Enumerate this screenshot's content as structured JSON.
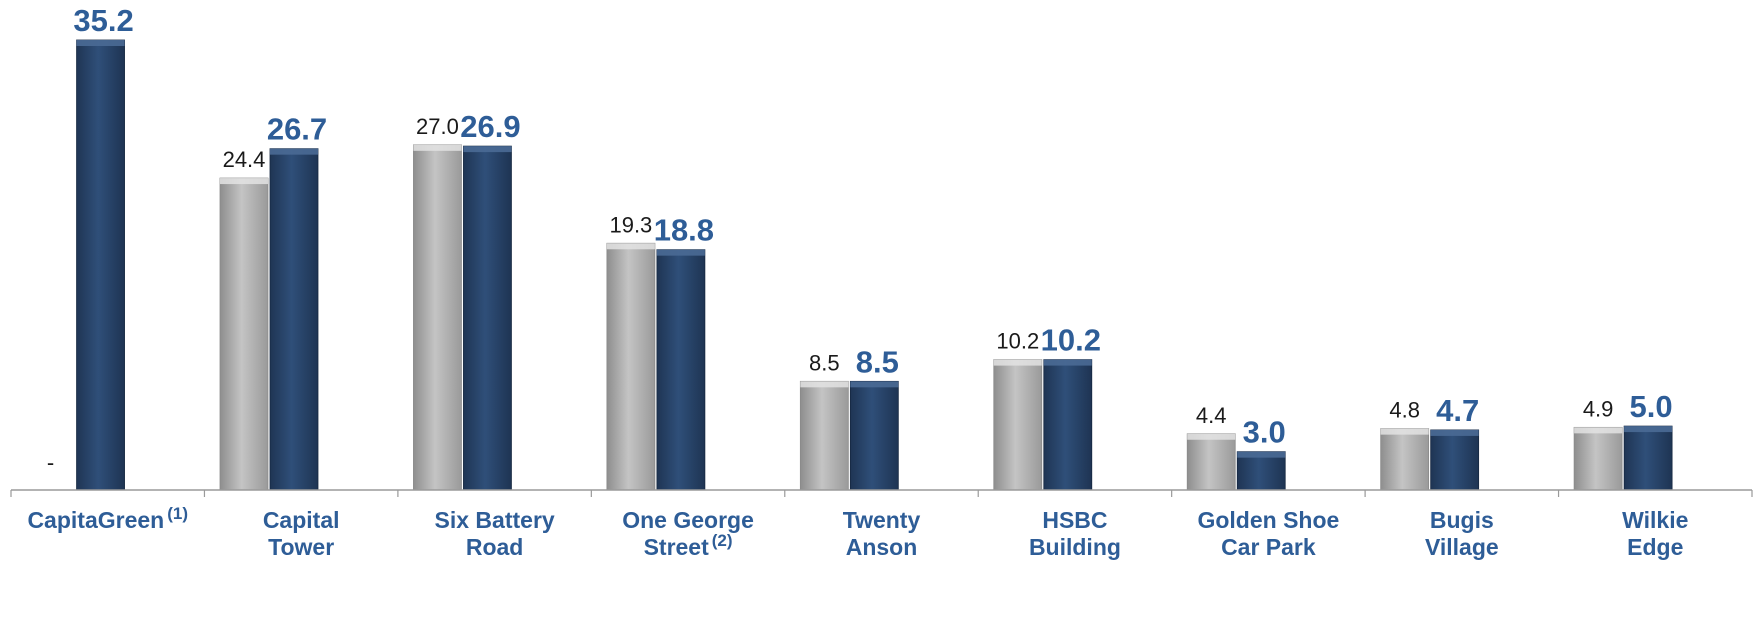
{
  "chart_data": {
    "type": "bar",
    "categories": [
      {
        "lines": [
          "CapitaGreen"
        ],
        "sup": "(1)"
      },
      {
        "lines": [
          "Capital",
          "Tower"
        ],
        "sup": ""
      },
      {
        "lines": [
          "Six Battery",
          "Road"
        ],
        "sup": ""
      },
      {
        "lines": [
          "One George",
          "Street"
        ],
        "sup": "(2)"
      },
      {
        "lines": [
          "Twenty",
          "Anson"
        ],
        "sup": ""
      },
      {
        "lines": [
          "HSBC",
          "Building"
        ],
        "sup": ""
      },
      {
        "lines": [
          "Golden Shoe",
          "Car Park"
        ],
        "sup": ""
      },
      {
        "lines": [
          "Bugis",
          "Village"
        ],
        "sup": ""
      },
      {
        "lines": [
          "Wilkie",
          "Edge"
        ],
        "sup": ""
      }
    ],
    "series": [
      {
        "values": [
          null,
          24.4,
          27.0,
          19.3,
          8.5,
          10.2,
          4.4,
          4.8,
          4.9
        ],
        "labels": [
          "-",
          "24.4",
          "27.0",
          "19.3",
          "8.5",
          "10.2",
          "4.4",
          "4.8",
          "4.9"
        ],
        "color": "#b4b4b4"
      },
      {
        "values": [
          35.2,
          26.7,
          26.9,
          18.8,
          8.5,
          10.2,
          3.0,
          4.7,
          5.0
        ],
        "labels": [
          "35.2",
          "26.7",
          "26.9",
          "18.8",
          "8.5",
          "10.2",
          "3.0",
          "4.7",
          "5.0"
        ],
        "color": "#27446b"
      }
    ],
    "title": "",
    "xlabel": "",
    "ylabel": "",
    "ylim": [
      0,
      35.2
    ],
    "grid": false,
    "legend": "none",
    "colors": {
      "label_text": "#2e5d97",
      "axis": "#9a9a9a"
    }
  }
}
